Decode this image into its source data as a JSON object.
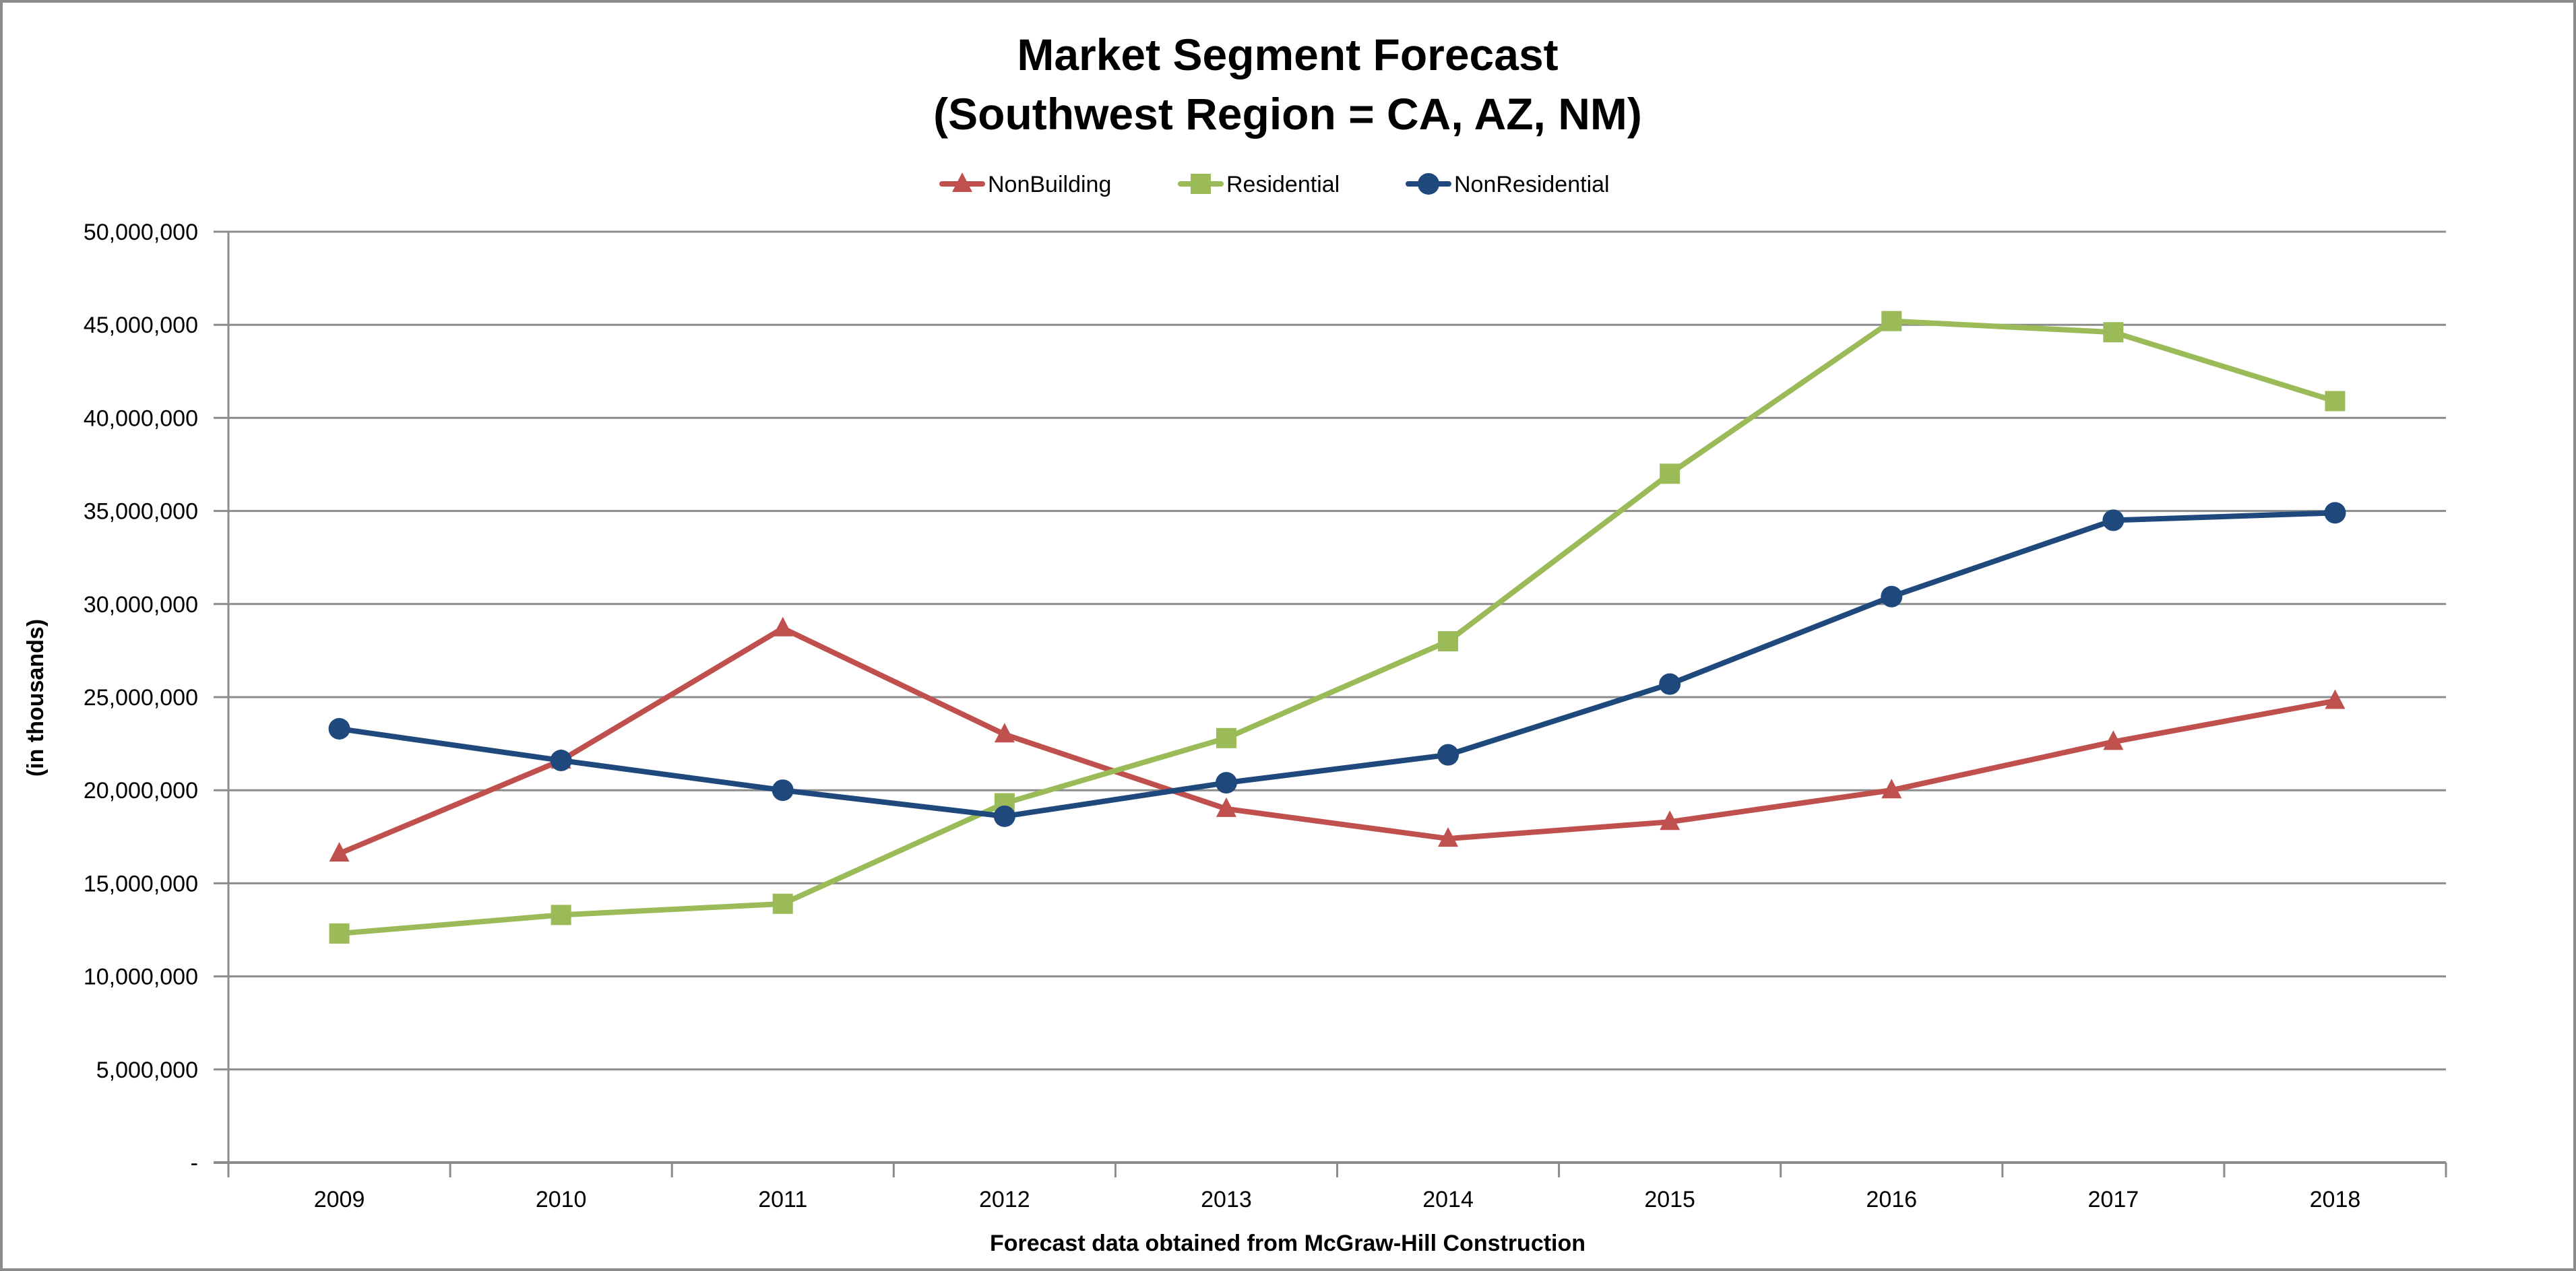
{
  "chart_data": {
    "type": "line",
    "title": "Market Segment Forecast",
    "subtitle": "(Southwest Region = CA, AZ, NM)",
    "xlabel": "Forecast data obtained from McGraw-Hill Construction",
    "ylabel": "(in thousands)",
    "ylim": [
      0,
      50000000
    ],
    "yticks": [
      0,
      5000000,
      10000000,
      15000000,
      20000000,
      25000000,
      30000000,
      35000000,
      40000000,
      45000000,
      50000000
    ],
    "ytick_labels": [
      "-",
      "5,000,000",
      "10,000,000",
      "15,000,000",
      "20,000,000",
      "25,000,000",
      "30,000,000",
      "35,000,000",
      "40,000,000",
      "45,000,000",
      "50,000,000"
    ],
    "categories": [
      "2009",
      "2010",
      "2011",
      "2012",
      "2013",
      "2014",
      "2015",
      "2016",
      "2017",
      "2018"
    ],
    "grid": true,
    "legend_position": "top",
    "series": [
      {
        "name": "NonBuilding",
        "color": "#C0504D",
        "marker": "triangle",
        "values": [
          16600000,
          21600000,
          28700000,
          23000000,
          19000000,
          17400000,
          18300000,
          20000000,
          22600000,
          24800000
        ]
      },
      {
        "name": "Residential",
        "color": "#9BBB59",
        "marker": "square",
        "values": [
          12300000,
          13300000,
          13900000,
          19300000,
          22800000,
          28000000,
          37000000,
          45200000,
          44600000,
          40900000
        ]
      },
      {
        "name": "NonResidential",
        "color": "#1F497D",
        "marker": "circle",
        "values": [
          23300000,
          21600000,
          20000000,
          18600000,
          20400000,
          21900000,
          25700000,
          30400000,
          34500000,
          34900000
        ]
      }
    ]
  }
}
